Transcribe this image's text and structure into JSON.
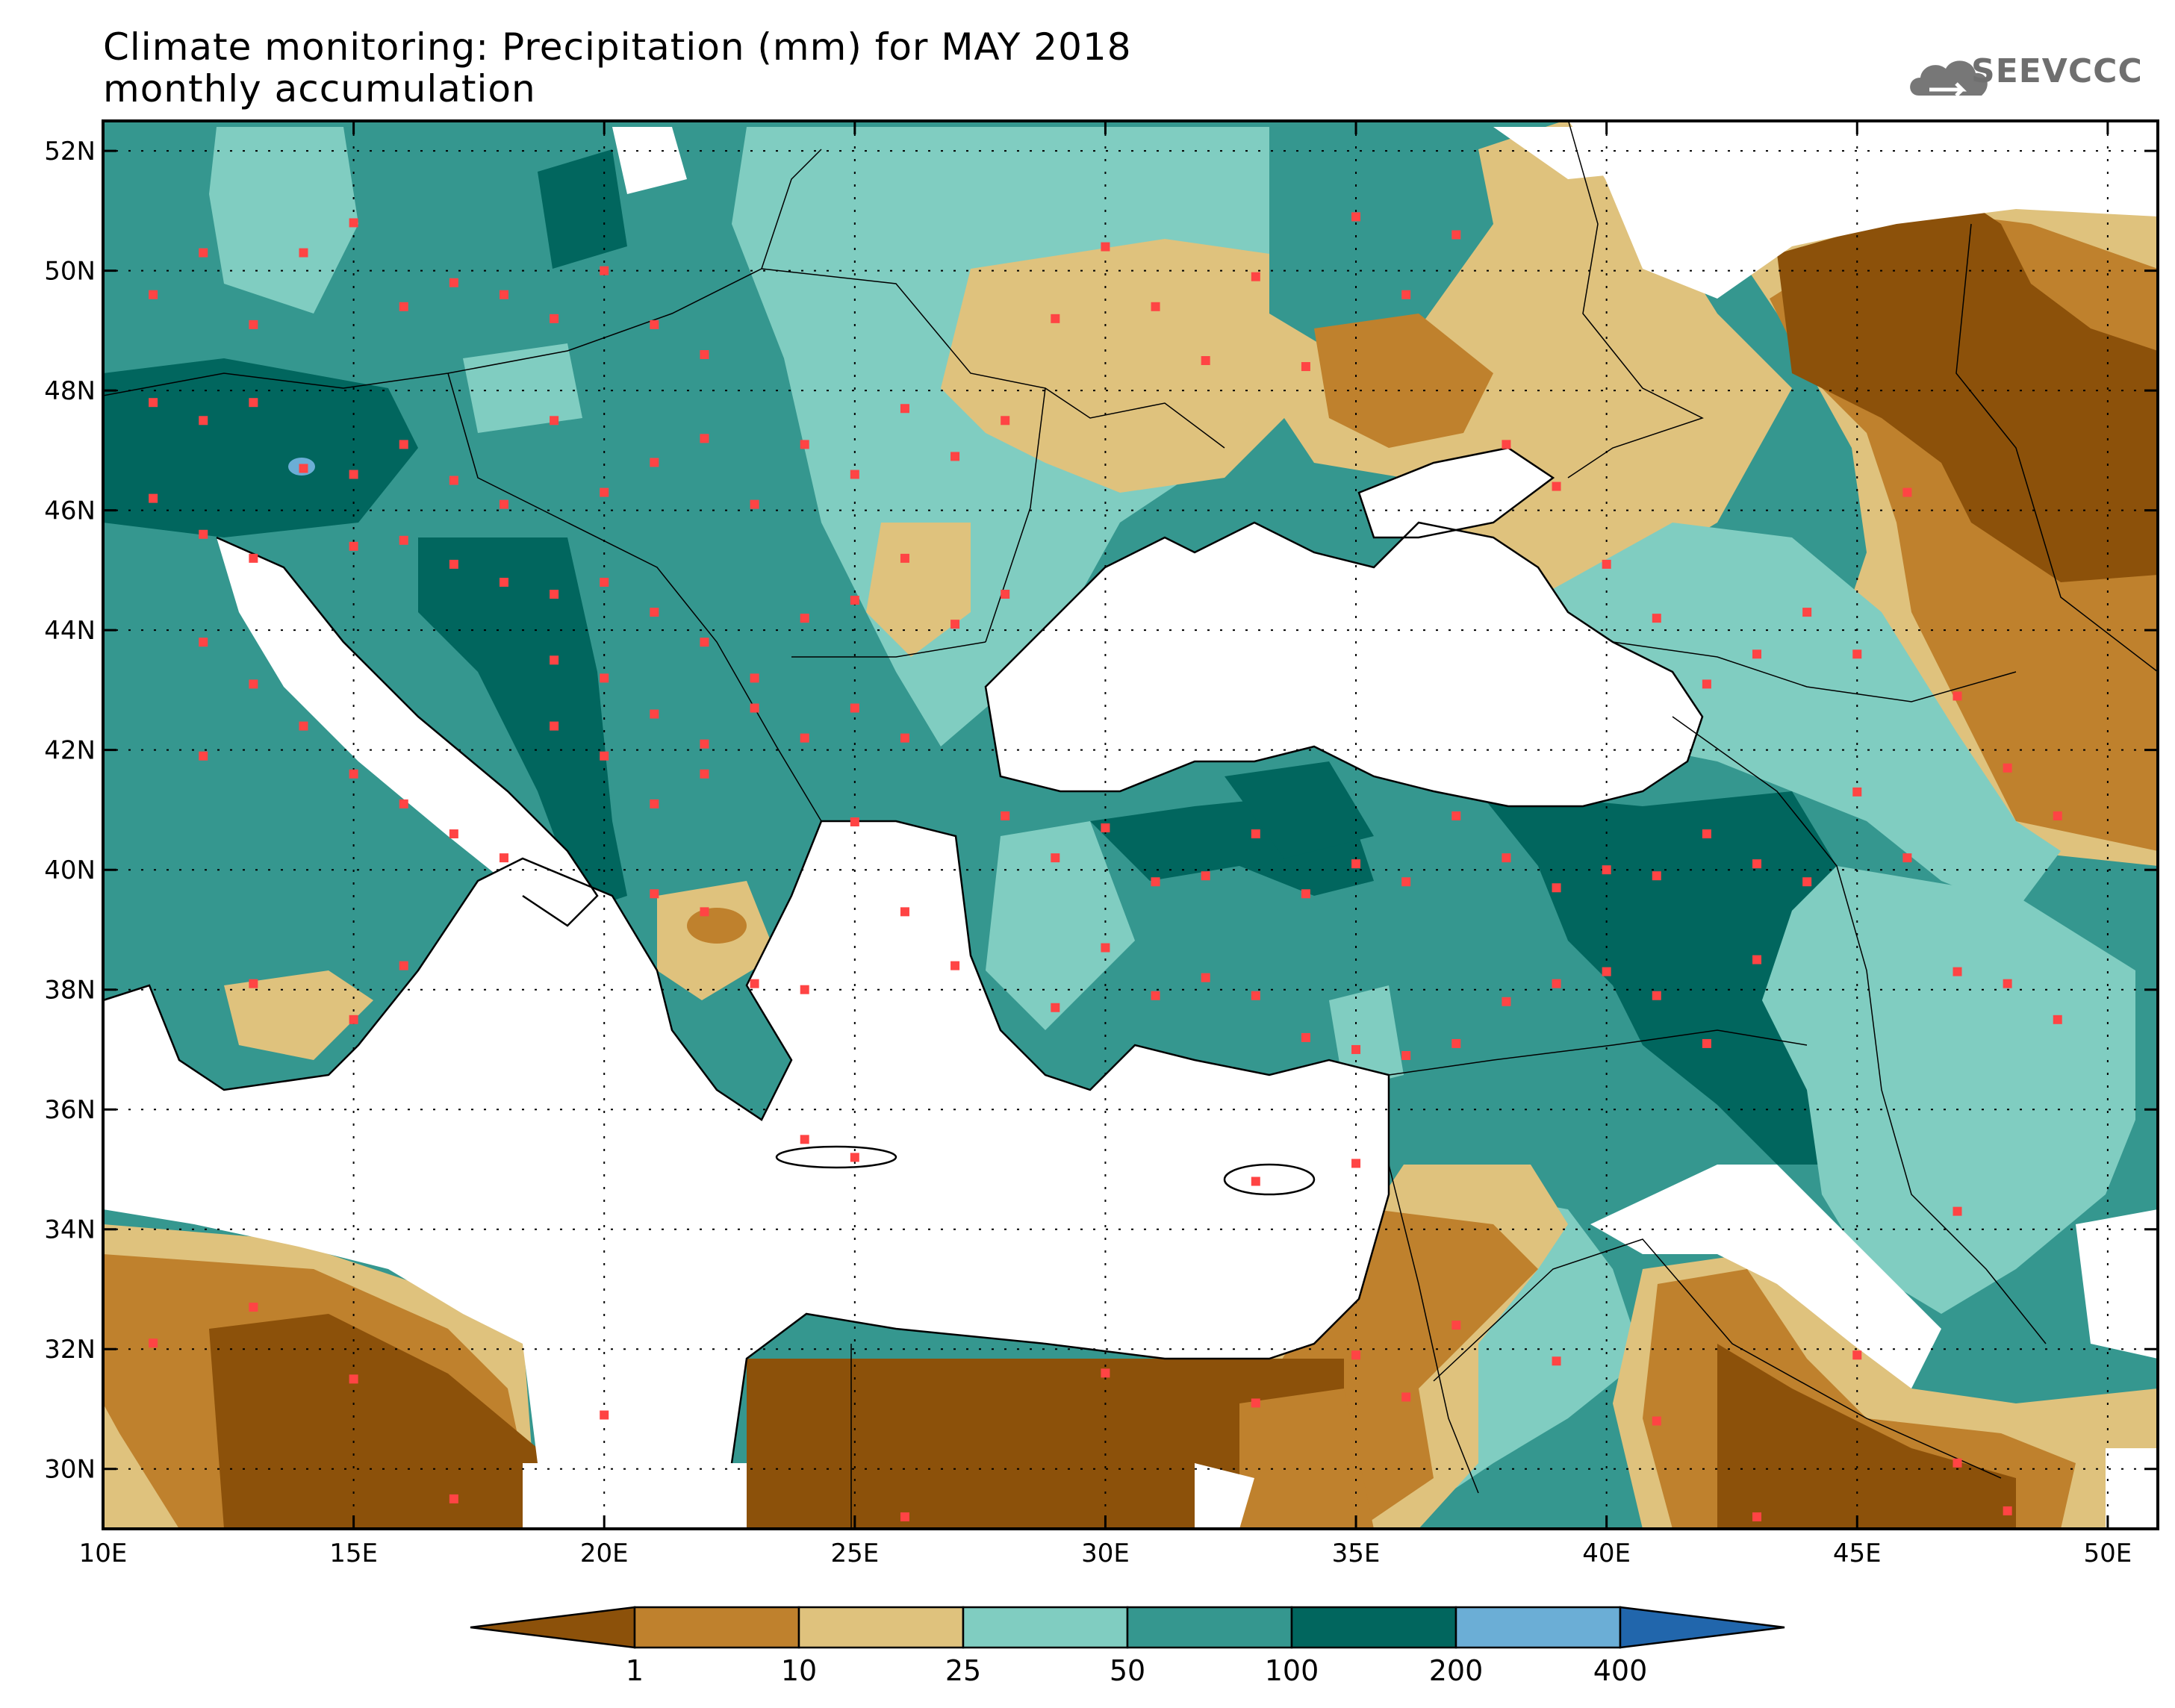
{
  "title_line1": "Climate monitoring: Precipitation (mm) for MAY 2018",
  "title_line2": "monthly accumulation",
  "logo_text": "SEEVCCC",
  "map": {
    "lon_range": [
      10,
      51
    ],
    "lat_range": [
      29,
      52.5
    ],
    "x_ticks": [
      {
        "lon": 10,
        "label": "10E"
      },
      {
        "lon": 15,
        "label": "15E"
      },
      {
        "lon": 20,
        "label": "20E"
      },
      {
        "lon": 25,
        "label": "25E"
      },
      {
        "lon": 30,
        "label": "30E"
      },
      {
        "lon": 35,
        "label": "35E"
      },
      {
        "lon": 40,
        "label": "40E"
      },
      {
        "lon": 45,
        "label": "45E"
      },
      {
        "lon": 50,
        "label": "50E"
      }
    ],
    "y_ticks": [
      {
        "lat": 52,
        "label": "52N"
      },
      {
        "lat": 50,
        "label": "50N"
      },
      {
        "lat": 48,
        "label": "48N"
      },
      {
        "lat": 46,
        "label": "46N"
      },
      {
        "lat": 44,
        "label": "44N"
      },
      {
        "lat": 42,
        "label": "42N"
      },
      {
        "lat": 40,
        "label": "40N"
      },
      {
        "lat": 38,
        "label": "38N"
      },
      {
        "lat": 36,
        "label": "36N"
      },
      {
        "lat": 34,
        "label": "34N"
      },
      {
        "lat": 32,
        "label": "32N"
      },
      {
        "lat": 30,
        "label": "30N"
      }
    ],
    "grid": "dotted",
    "station_color": "#ff4444"
  },
  "colorbar": {
    "thresholds": [
      "1",
      "10",
      "25",
      "50",
      "100",
      "200",
      "400"
    ],
    "colors": [
      "#8c510a",
      "#bf812d",
      "#dfc27d",
      "#80cdc1",
      "#35978f",
      "#01665e",
      "#6baed6",
      "#2166ac"
    ]
  },
  "legend_colors": {
    "lt1": "#8c510a",
    "1-10": "#bf812d",
    "10-25": "#dfc27d",
    "25-50": "#80cdc1",
    "50-100": "#35978f",
    "100-200": "#01665e",
    "200-400": "#6baed6",
    "gt400": "#2166ac"
  }
}
